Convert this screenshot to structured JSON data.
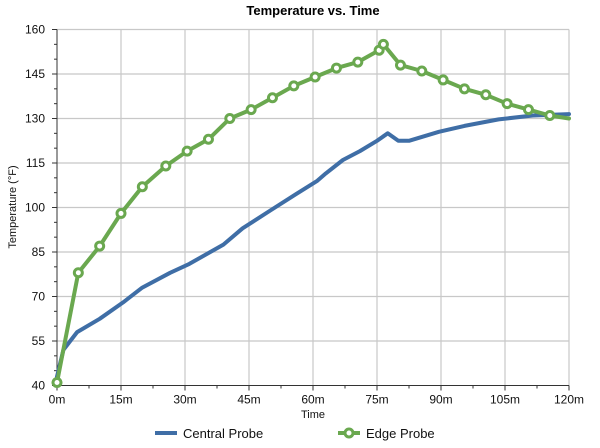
{
  "chart_data": {
    "type": "line",
    "title": "Temperature vs. Time",
    "xlabel": "Time",
    "ylabel": "Temperature (°F)",
    "xlim": [
      0,
      120
    ],
    "ylim": [
      40,
      160
    ],
    "x_ticks": [
      0,
      15,
      30,
      45,
      60,
      75,
      90,
      105,
      120
    ],
    "x_tick_labels": [
      "0m",
      "15m",
      "30m",
      "45m",
      "60m",
      "75m",
      "90m",
      "105m",
      "120m"
    ],
    "y_ticks": [
      40,
      55,
      70,
      85,
      100,
      115,
      130,
      145,
      160
    ],
    "y_tick_labels": [
      "40",
      "55",
      "70",
      "85",
      "100",
      "115",
      "130",
      "145",
      "160"
    ],
    "grid": true,
    "legend_position": "bottom",
    "series": [
      {
        "name": "Central Probe",
        "color": "#3f6ea6",
        "markers": false,
        "x": [
          0,
          1.5,
          4.7,
          10,
          15.5,
          20,
          26.5,
          31,
          39,
          43.5,
          50,
          56,
          61,
          63,
          67,
          71,
          75,
          77.5,
          80,
          82.5,
          89.5,
          95.5,
          103.5,
          111.5,
          120
        ],
        "y": [
          43,
          52,
          58,
          62.5,
          68,
          73,
          78,
          81,
          87.5,
          93,
          99,
          104.5,
          109,
          111.5,
          116,
          119,
          122.5,
          125,
          122.5,
          122.5,
          125.5,
          127.5,
          129.7,
          131,
          131.5
        ]
      },
      {
        "name": "Edge Probe",
        "color": "#6aa84f",
        "markers": true,
        "x": [
          0,
          5,
          10,
          15,
          20,
          25.5,
          30.5,
          35.5,
          40.5,
          45.5,
          50.5,
          55.5,
          60.5,
          65.5,
          70.5,
          75.5,
          76.5,
          80.5,
          85.5,
          90.5,
          95.5,
          100.5,
          105.5,
          110.5,
          115.5
        ],
        "y": [
          41,
          78,
          87,
          98,
          107,
          114,
          119,
          123,
          130,
          133,
          137,
          141,
          144,
          147,
          149,
          153,
          155,
          148,
          146,
          143,
          140,
          138,
          135,
          133,
          131
        ],
        "line_end": [
          120,
          130
        ]
      }
    ]
  }
}
